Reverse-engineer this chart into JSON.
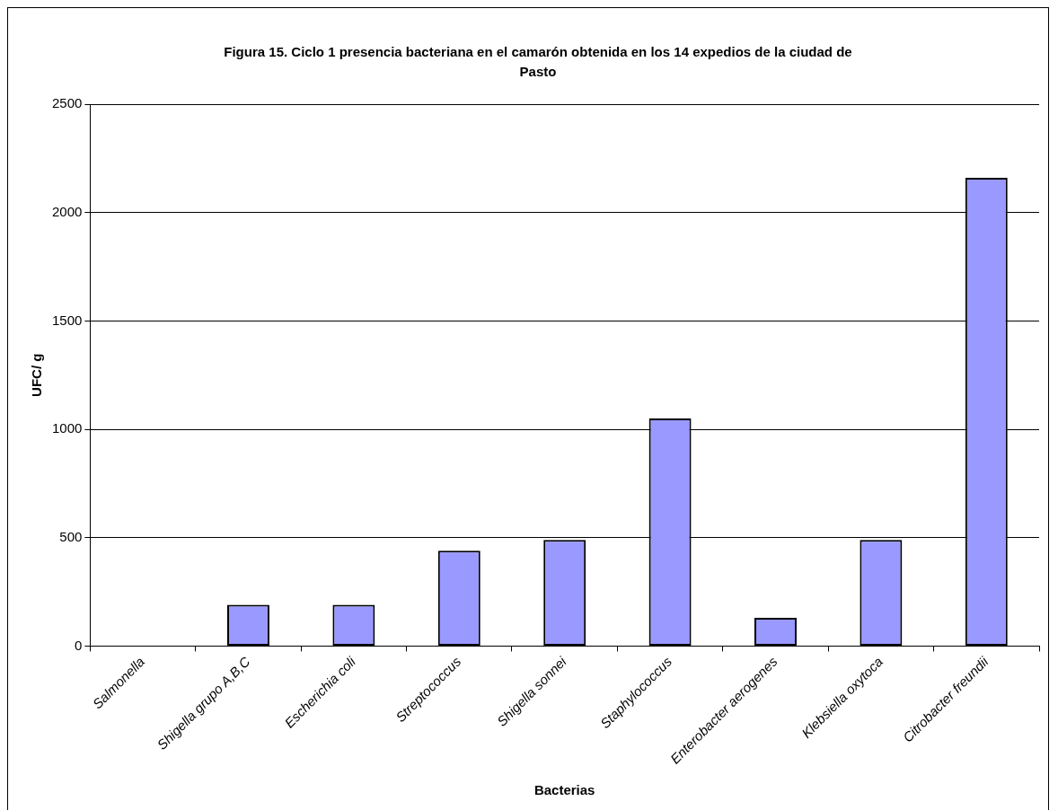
{
  "chart_data": {
    "type": "bar",
    "title": "Figura 15.  Ciclo 1 presencia bacteriana en el camarón obtenida en los 14 expedios de la ciudad de Pasto",
    "xlabel": "Bacterias",
    "ylabel": "UFC/ g",
    "categories": [
      "Salmonella",
      "Shigella grupo A,B,C",
      "Escherichia coli",
      "Streptococcus",
      "Shigella sonnei",
      "Staphylococcus",
      "Enterobacter aerogenes",
      "Klebsiella oxytoca",
      "Citrobacter freundii"
    ],
    "values": [
      0,
      190,
      190,
      440,
      490,
      1050,
      130,
      490,
      2160
    ],
    "color": "#9999ff",
    "ylim": [
      0,
      2500
    ],
    "yticks": [
      0,
      500,
      1000,
      1500,
      2000,
      2500
    ],
    "grid": "y",
    "legend": false
  }
}
